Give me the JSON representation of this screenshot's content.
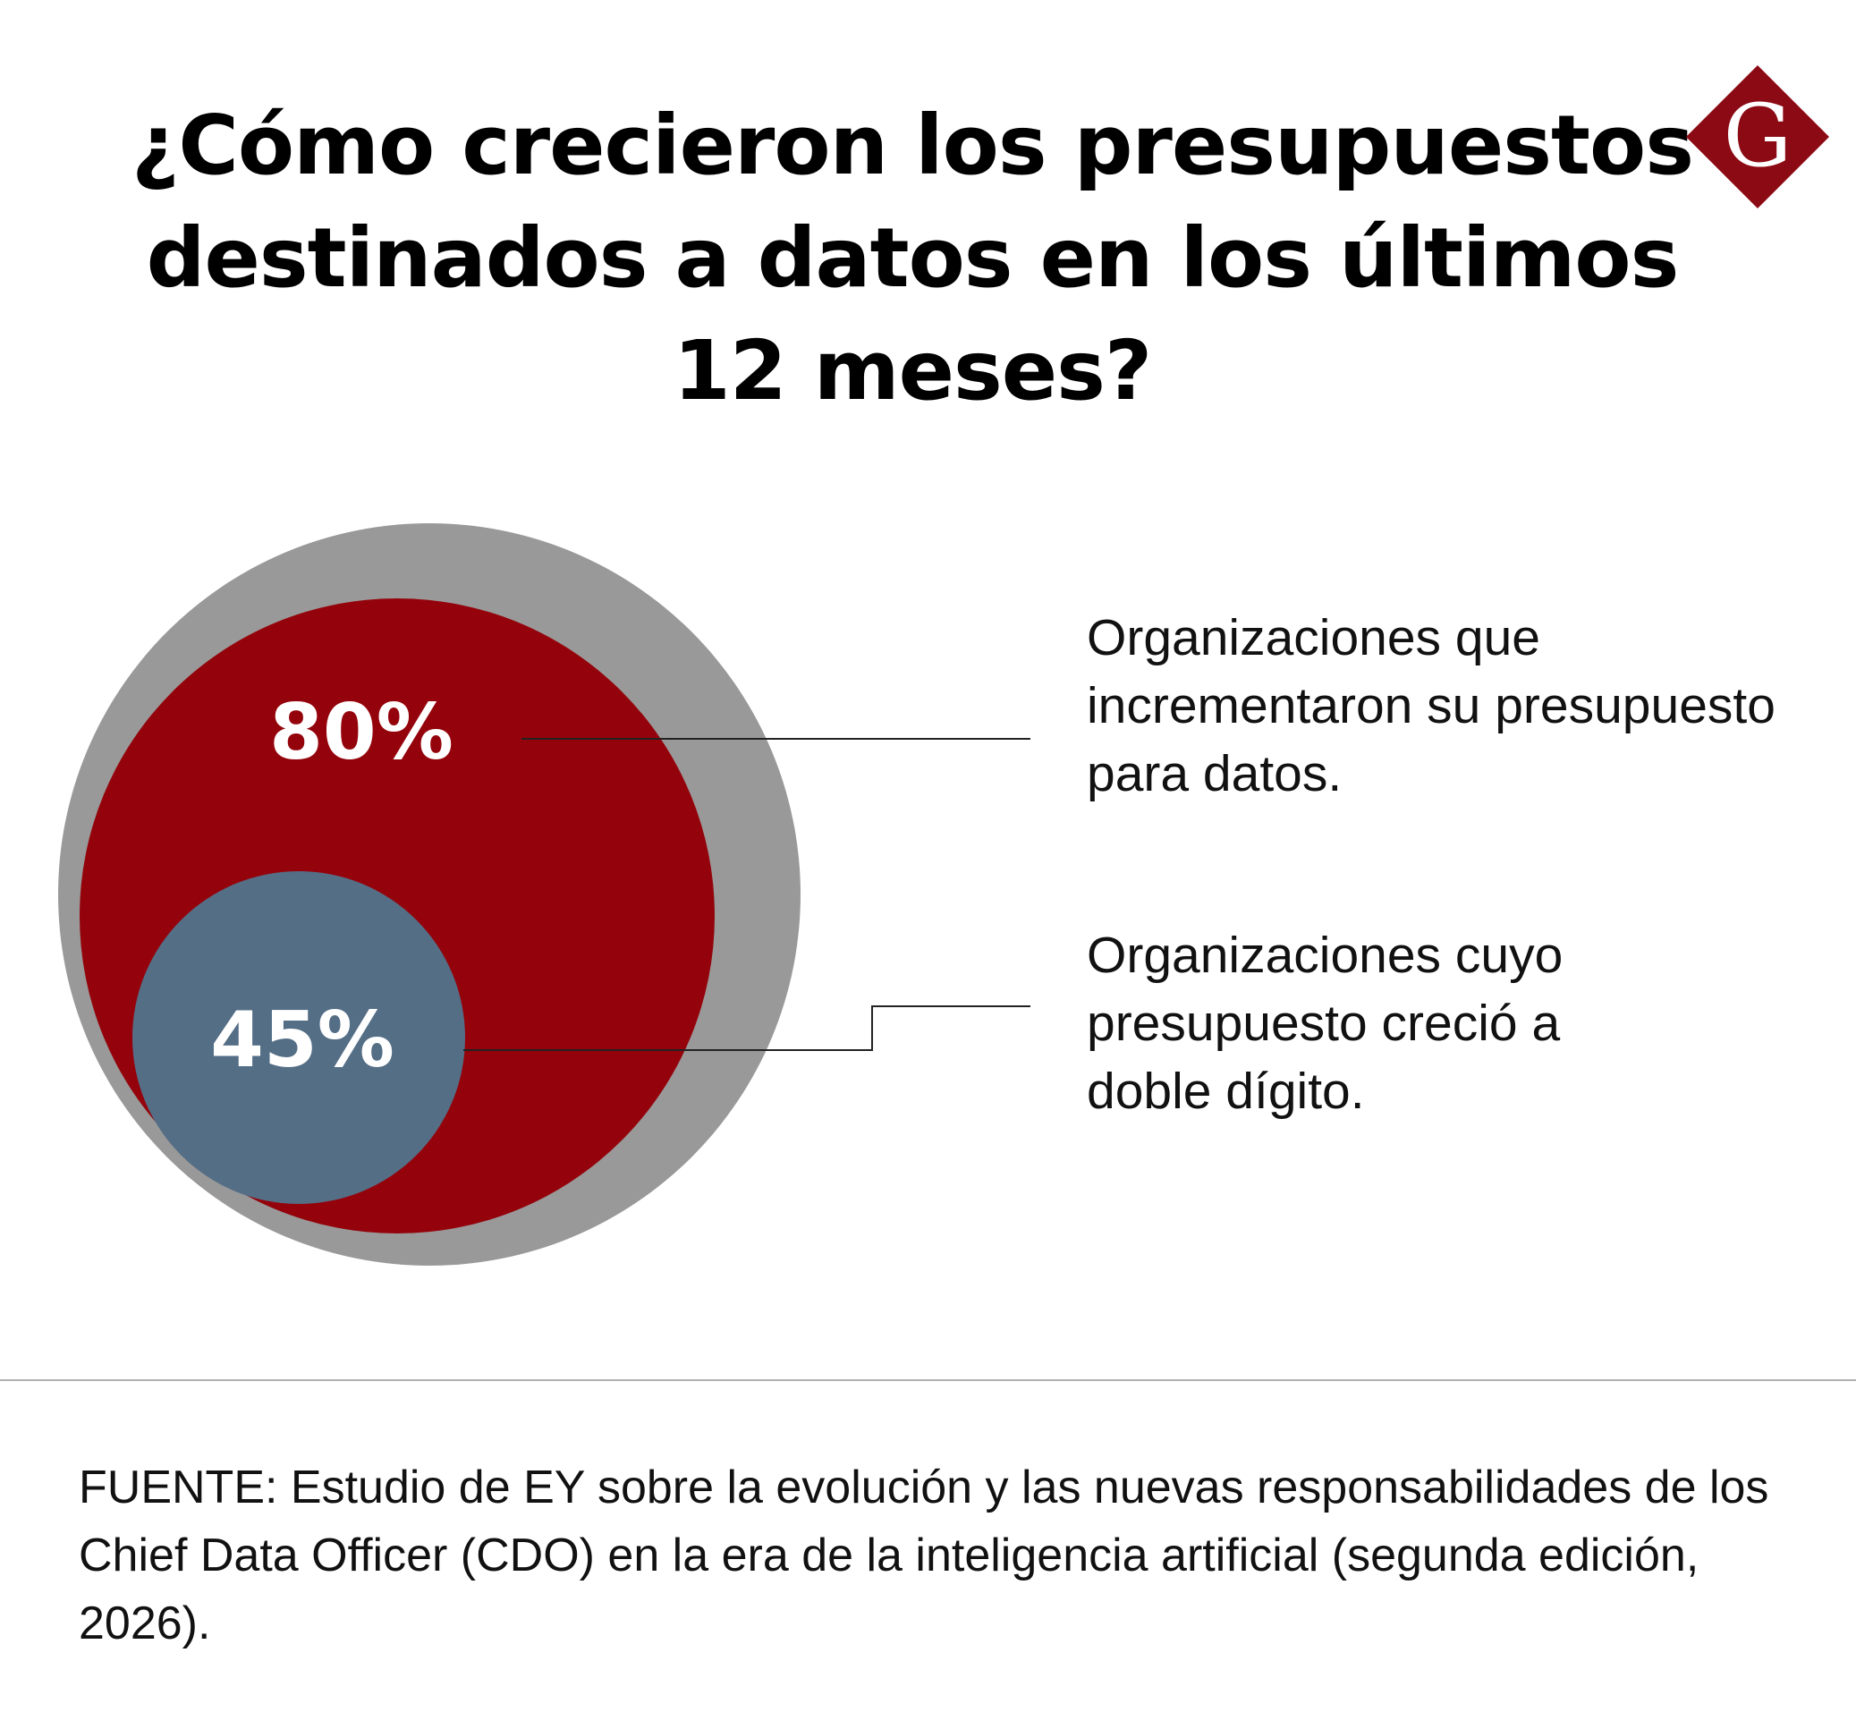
{
  "title": "¿Cómo crecieron los presupuestos destinados a datos en los últimos 12 meses?",
  "logo": {
    "letter": "G",
    "color": "#8b0a14"
  },
  "colors": {
    "outer": "#999999",
    "primary": "#94030b",
    "secondary": "#546e86",
    "value_text": "#ffffff",
    "leader": "#222222"
  },
  "chart_data": {
    "type": "nested-circle",
    "title": "¿Cómo crecieron los presupuestos destinados a datos en los últimos 12 meses?",
    "unit": "%",
    "total": 100,
    "series": [
      {
        "value": 80,
        "display": "80%",
        "description": "Organizaciones que incrementaron su presupuesto para datos.",
        "color": "#94030b"
      },
      {
        "value": 45,
        "display": "45%",
        "description": "Organizaciones cuyo presupuesto creció a doble dígito.",
        "color": "#546e86"
      }
    ]
  },
  "source": "FUENTE: Estudio de EY sobre la evolución y las nuevas responsabilidades de los Chief Data Officer (CDO) en la era de la inteligencia artificial (segunda edición, 2026)."
}
